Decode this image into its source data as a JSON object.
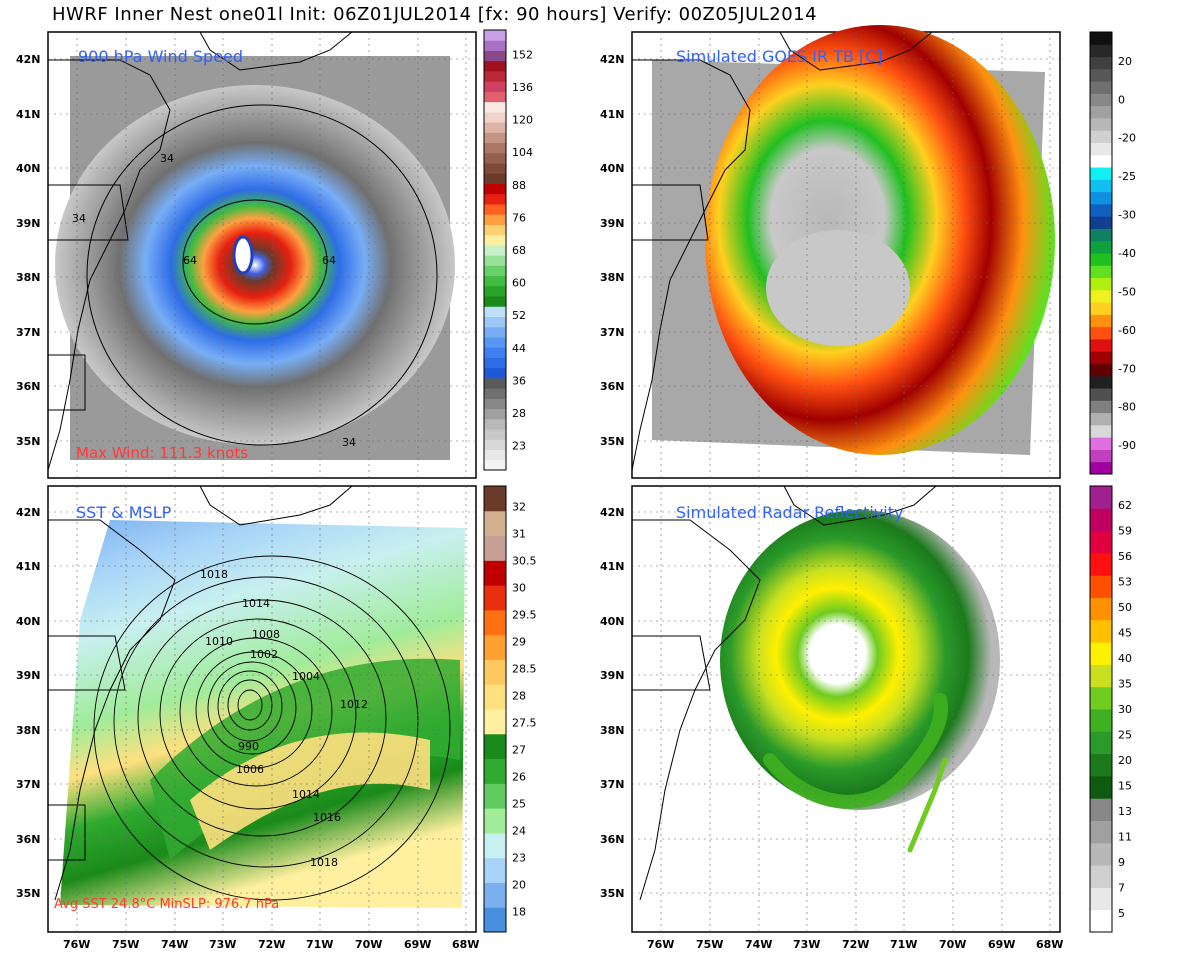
{
  "title": "HWRF Inner Nest one01l Init: 06Z01JUL2014 [fx: 90 hours] Verify: 00Z05JUL2014",
  "lat_labels": [
    "42N",
    "41N",
    "40N",
    "39N",
    "38N",
    "37N",
    "36N",
    "35N"
  ],
  "lon_labels": [
    "76W",
    "75W",
    "74W",
    "73W",
    "72W",
    "71W",
    "70W",
    "69W",
    "68W"
  ],
  "panels": [
    {
      "id": "wind",
      "label": "900 hPa Wind Speed",
      "note": "Max Wind: 111.3 knots",
      "contour_labels": [
        "34",
        "34",
        "34",
        "64",
        "64"
      ],
      "colorbar": {
        "labels": [
          "152",
          "136",
          "120",
          "104",
          "88",
          "76",
          "68",
          "60",
          "52",
          "44",
          "36",
          "28",
          "23"
        ],
        "colors": [
          "#f4f4f4",
          "#e8e8e8",
          "#d8d8d8",
          "#c8c8c8",
          "#b8b8b8",
          "#a0a0a0",
          "#888888",
          "#707070",
          "#5a5a5a",
          "#1e5ad8",
          "#2e6ce6",
          "#3e80f0",
          "#5896f4",
          "#78aef6",
          "#9cc8f8",
          "#c0e0fa",
          "#1a8a1a",
          "#28a428",
          "#40bc40",
          "#68d068",
          "#98e098",
          "#c8f0c8",
          "#fff0a0",
          "#ffd070",
          "#ffa040",
          "#ff6020",
          "#e82010",
          "#c00000",
          "#6a3a2a",
          "#7e4a3a",
          "#946050",
          "#aa7866",
          "#c49484",
          "#dcb4a8",
          "#f0d4cc",
          "#fae8e4",
          "#e06070",
          "#d04060",
          "#b82838",
          "#a01020",
          "#8a4a8a",
          "#aa70c8",
          "#c8a0e8"
        ]
      }
    },
    {
      "id": "ir",
      "label": "Simulated GOES IR TB [C]",
      "colorbar": {
        "labels": [
          "20",
          "0",
          "-20",
          "-25",
          "-30",
          "-40",
          "-50",
          "-60",
          "-70",
          "-80",
          "-90"
        ],
        "colors": [
          "#a000a0",
          "#c040c0",
          "#e070e0",
          "#d8d8d8",
          "#b0b0b0",
          "#808080",
          "#505050",
          "#202020",
          "#600000",
          "#a00000",
          "#e01010",
          "#ff5010",
          "#ff9010",
          "#ffd020",
          "#f0f020",
          "#b0f010",
          "#60e020",
          "#20c020",
          "#10a040",
          "#108060",
          "#104090",
          "#1060c0",
          "#1090e0",
          "#10c0f0",
          "#10f0f0",
          "#ffffff",
          "#e8e8e8",
          "#d0d0d0",
          "#b8b8b8",
          "#a0a0a0",
          "#888888",
          "#707070",
          "#585858",
          "#404040",
          "#282828",
          "#101010"
        ]
      }
    },
    {
      "id": "sst",
      "label": "SST & MSLP",
      "note": "Avg SST 24.8°C MinSLP: 976.7 hPa",
      "contour_labels": [
        "1018",
        "1014",
        "1010",
        "1008",
        "1002",
        "1004",
        "1012",
        "990",
        "1006",
        "1014",
        "1016",
        "1018"
      ],
      "colorbar": {
        "labels": [
          "32",
          "31",
          "30.5",
          "30",
          "29.5",
          "29",
          "28.5",
          "28",
          "27.5",
          "27",
          "26",
          "25",
          "24",
          "23",
          "20",
          "18"
        ],
        "colors": [
          "#4a90e0",
          "#7ab0f0",
          "#a8d4f8",
          "#c8f0f0",
          "#a0ec9a",
          "#60cc60",
          "#30aa30",
          "#1a8a1a",
          "#fff0a0",
          "#ffe080",
          "#ffc860",
          "#ffa030",
          "#ff7010",
          "#e83010",
          "#c00000",
          "#c8a098",
          "#d4b090",
          "#6a3a2a"
        ]
      }
    },
    {
      "id": "radar",
      "label": "Simulated Radar Reflectivity",
      "colorbar": {
        "labels": [
          "62",
          "59",
          "56",
          "53",
          "50",
          "45",
          "40",
          "35",
          "30",
          "25",
          "20",
          "15",
          "13",
          "11",
          "9",
          "7",
          "5"
        ],
        "colors": [
          "#ffffff",
          "#e8e8e8",
          "#d0d0d0",
          "#b8b8b8",
          "#a0a0a0",
          "#888888",
          "#0e5a0e",
          "#1a7a1a",
          "#2a9a2a",
          "#40b020",
          "#70cc20",
          "#c8e020",
          "#fff000",
          "#ffc000",
          "#ff9000",
          "#ff5000",
          "#ff1010",
          "#e00040",
          "#c00060",
          "#a02090"
        ]
      }
    }
  ]
}
